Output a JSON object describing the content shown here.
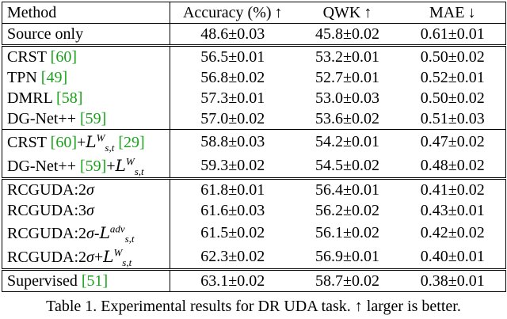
{
  "table": {
    "headers": [
      "Method",
      "Accuracy (%) ↑",
      "QWK ↑",
      "MAE ↓"
    ],
    "groups": [
      {
        "rows": [
          {
            "method": "Source only",
            "cite": "",
            "suffix": "",
            "acc": "48.6±0.03",
            "qwk": "45.8±0.02",
            "mae": "0.61±0.01"
          }
        ]
      },
      {
        "rows": [
          {
            "method": "CRST ",
            "cite": "[60]",
            "acc": "56.5±0.01",
            "qwk": "53.2±0.01",
            "mae": "0.50±0.02"
          },
          {
            "method": "TPN ",
            "cite": "[49]",
            "acc": "56.8±0.02",
            "qwk": "52.7±0.01",
            "mae": "0.52±0.01"
          },
          {
            "method": "DMRL ",
            "cite": "[58]",
            "acc": "57.3±0.01",
            "qwk": "53.0±0.03",
            "mae": "0.50±0.02"
          },
          {
            "method": "DG-Net++ ",
            "cite": "[59]",
            "acc": "57.0±0.02",
            "qwk": "53.6±0.02",
            "mae": "0.51±0.03"
          }
        ]
      },
      {
        "rows": [
          {
            "method": "CRST ",
            "cite": "[60]",
            "plus": "+",
            "loss": "L",
            "sup": "W",
            "sub": "s,t",
            "cite2": "[29]",
            "acc": "58.8±0.03",
            "qwk": "54.2±0.01",
            "mae": "0.47±0.02"
          },
          {
            "method": "DG-Net++ ",
            "cite": "[59]",
            "plus": "+",
            "loss": "L",
            "sup": "W",
            "sub": "s,t",
            "acc": "59.3±0.02",
            "qwk": "54.5±0.02",
            "mae": "0.48±0.02"
          }
        ]
      },
      {
        "rows": [
          {
            "method": "RCGUDA:2",
            "sigma": "σ",
            "acc": "61.8±0.01",
            "qwk": "56.4±0.01",
            "mae": "0.41±0.02"
          },
          {
            "method": "RCGUDA:3",
            "sigma": "σ",
            "acc": "61.6±0.03",
            "qwk": "56.2±0.02",
            "mae": "0.43±0.01"
          },
          {
            "method": "RCGUDA:2",
            "sigma": "σ",
            "plus": "-",
            "loss": "L",
            "sup": "adv",
            "sub": "s,t",
            "acc": "61.5±0.02",
            "qwk": "56.1±0.02",
            "mae": "0.42±0.02"
          },
          {
            "method": "RCGUDA:2",
            "sigma": "σ",
            "plus": "+",
            "loss": "L",
            "sup": "W",
            "sub": "s,t",
            "acc": "62.3±0.02",
            "qwk": "56.9±0.01",
            "mae": "0.40±0.01"
          }
        ]
      },
      {
        "rows": [
          {
            "method": "Supervised ",
            "cite": "[51]",
            "acc": "63.1±0.02",
            "qwk": "58.7±0.02",
            "mae": "0.38±0.01"
          }
        ]
      }
    ]
  },
  "caption": "Table 1. Experimental results for DR UDA task. ↑ larger is better."
}
